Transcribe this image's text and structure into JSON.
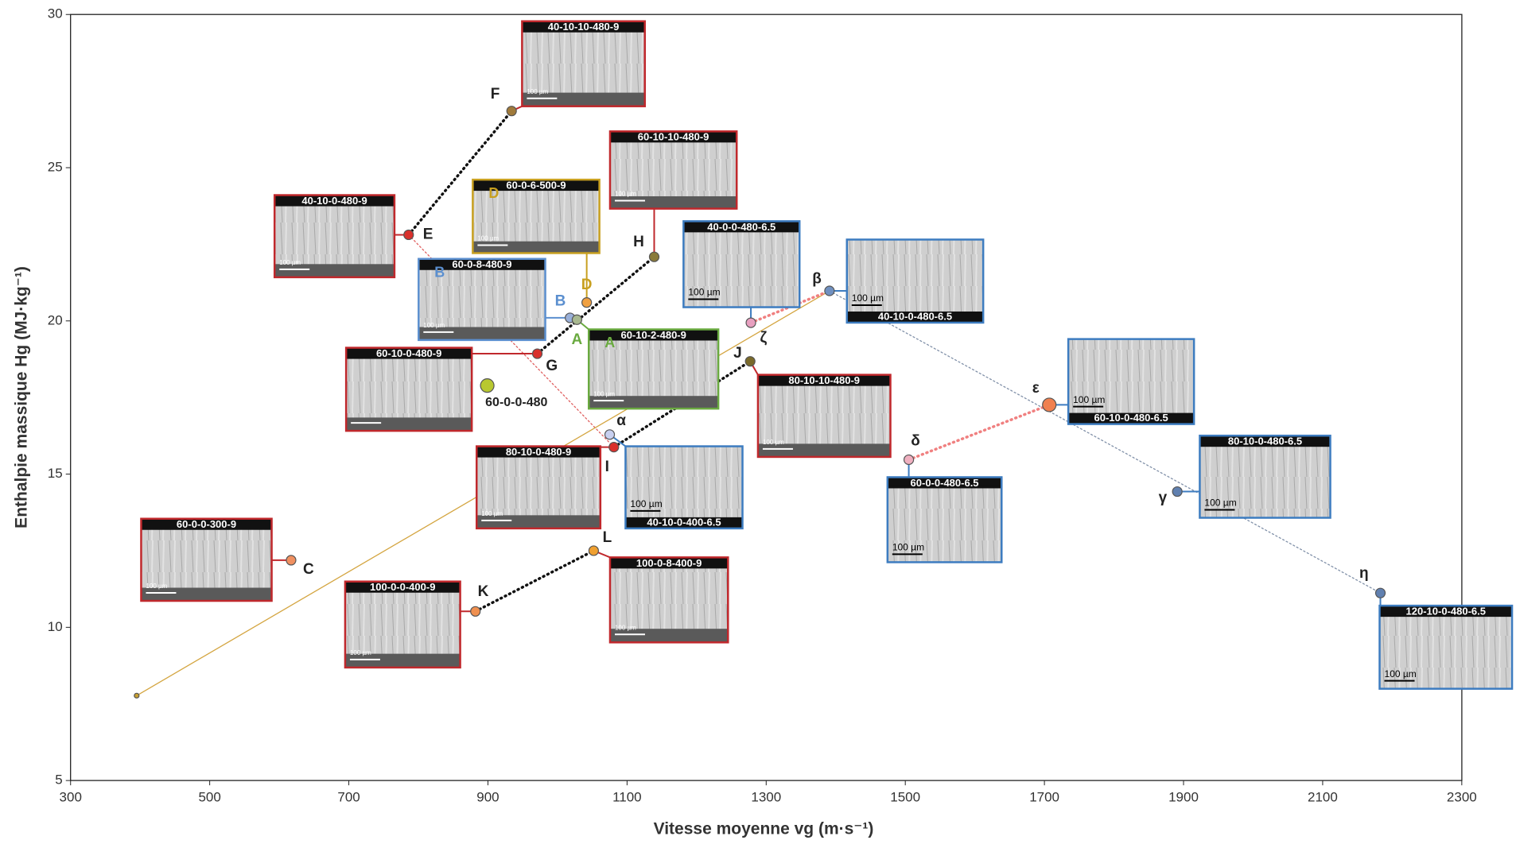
{
  "chart_data": {
    "type": "scatter",
    "x_label": "Vitesse moyenne vg (m·s⁻¹)",
    "y_label": "Enthalpie massique Hg (MJ·kg⁻¹)",
    "xlim": [
      300,
      2300
    ],
    "ylim": [
      5,
      30
    ],
    "xticks": [
      300,
      500,
      700,
      900,
      1100,
      1300,
      1500,
      1700,
      1900,
      2100,
      2300
    ],
    "yticks": [
      5,
      10,
      15,
      20,
      25,
      30
    ],
    "points": [
      {
        "label": "F",
        "x": 934,
        "y": 26.85,
        "color": "#a07a3a"
      },
      {
        "label": "E",
        "x": 786,
        "y": 22.81,
        "color": "#d9302c"
      },
      {
        "label": "H",
        "x": 1139,
        "y": 22.09,
        "color": "#8a7a3a"
      },
      {
        "label": "D",
        "x": 1042,
        "y": 20.6,
        "color": "#f0a040"
      },
      {
        "label": "B",
        "x": 1018,
        "y": 20.1,
        "color": "#9ab0d8"
      },
      {
        "label": "A",
        "x": 1028,
        "y": 20.04,
        "color": "#a8b890"
      },
      {
        "label": "G",
        "x": 971,
        "y": 18.93,
        "color": "#d9302c"
      },
      {
        "label": "60-0-0-480",
        "x": 899,
        "y": 17.89,
        "color": "#b8c830"
      },
      {
        "label": "α",
        "x": 1075,
        "y": 16.29,
        "color": "#c8d0f0"
      },
      {
        "label": "I",
        "x": 1081,
        "y": 15.88,
        "color": "#d9302c"
      },
      {
        "label": "J",
        "x": 1277,
        "y": 18.68,
        "color": "#7a6a2a"
      },
      {
        "label": "ζ",
        "x": 1278,
        "y": 19.94,
        "color": "#e8a0c0"
      },
      {
        "label": "β",
        "x": 1391,
        "y": 20.98,
        "color": "#7090c0"
      },
      {
        "label": "ε",
        "x": 1707,
        "y": 17.26,
        "color": "#f08050"
      },
      {
        "label": "δ",
        "x": 1505,
        "y": 15.47,
        "color": "#f0b0c0"
      },
      {
        "label": "γ",
        "x": 1891,
        "y": 14.43,
        "color": "#6080b0"
      },
      {
        "label": "η",
        "x": 2183,
        "y": 11.12,
        "color": "#6080b0"
      },
      {
        "label": "C",
        "x": 617,
        "y": 12.19,
        "color": "#f09060"
      },
      {
        "label": "L",
        "x": 1052,
        "y": 12.5,
        "color": "#f0a030"
      },
      {
        "label": "K",
        "x": 882,
        "y": 10.52,
        "color": "#f09050"
      },
      {
        "label": null,
        "x": 395,
        "y": 7.77,
        "color": "#c8a030"
      }
    ],
    "lines": [
      {
        "from": 1,
        "to": 0,
        "color": "#111111",
        "dashed": true,
        "heavy": true
      },
      {
        "from": 19,
        "to": 18,
        "color": "#111111",
        "dashed": true,
        "heavy": true
      },
      {
        "from": 6,
        "to": 2,
        "color": "#111111",
        "dashed": true,
        "heavy": true
      },
      {
        "from": 9,
        "to": 10,
        "color": "#111111",
        "dashed": true,
        "heavy": true
      },
      {
        "from": 1,
        "to": 9,
        "color": "#e06060",
        "dashed": true,
        "heavy": false
      },
      {
        "from": 20,
        "to": 12,
        "color": "#d4a540",
        "dashed": false,
        "heavy": false
      },
      {
        "from": 12,
        "to": 16,
        "color": "#8090a8",
        "dashed": true,
        "heavy": false
      },
      {
        "from": 11,
        "to": 12,
        "color": "#f08080",
        "dashed": true,
        "heavy": true
      },
      {
        "from": 14,
        "to": 13,
        "color": "#f08080",
        "dashed": true,
        "heavy": true
      }
    ],
    "insets": [
      {
        "title": "40-10-10-480-9",
        "color": "#c0282c",
        "scale_label": "100 µm"
      },
      {
        "title": "60-10-10-480-9",
        "color": "#c0282c",
        "scale_label": "100 µm"
      },
      {
        "title": "60-0-6-500-9",
        "color": "#c8a020",
        "scale_label": "100 µm",
        "letter": "D"
      },
      {
        "title": "40-10-0-480-9",
        "color": "#c0282c",
        "scale_label": "100 µm"
      },
      {
        "title": "60-0-8-480-9",
        "color": "#5b8fcf",
        "scale_label": "100 µm",
        "letter": "B"
      },
      {
        "title": "40-0-0-480-6.5",
        "color": "#3d7cc0",
        "scale_label": "100 µm"
      },
      {
        "title": "40-10-0-480-6.5",
        "color": "#3d7cc0",
        "scale_label": "100 µm"
      },
      {
        "title": "60-10-0-480-9",
        "color": "#c0282c"
      },
      {
        "title": "60-10-2-480-9",
        "color": "#6aaa40",
        "scale_label": "100 µm",
        "letter": "A"
      },
      {
        "title": "80-10-10-480-9",
        "color": "#c0282c",
        "scale_label": "100 µm"
      },
      {
        "title": "80-10-0-480-9",
        "color": "#c0282c",
        "scale_label": "100 µm"
      },
      {
        "title": "40-10-0-400-6.5",
        "color": "#3d7cc0",
        "scale_label": "100 µm"
      },
      {
        "title": "60-10-0-480-6.5",
        "color": "#3d7cc0",
        "scale_label": "100 µm"
      },
      {
        "title": "60-0-0-480-6.5",
        "color": "#3d7cc0",
        "scale_label": "100 µm"
      },
      {
        "title": "80-10-0-480-6.5",
        "color": "#3d7cc0",
        "scale_label": "100 µm"
      },
      {
        "title": "60-0-0-300-9",
        "color": "#c0282c",
        "scale_label": "100 µm"
      },
      {
        "title": "100-0-0-400-9",
        "color": "#c0282c",
        "scale_label": "100 µm"
      },
      {
        "title": "100-0-8-400-9",
        "color": "#c0282c",
        "scale_label": "100 µm"
      },
      {
        "title": "120-10-0-480-6.5",
        "color": "#3d7cc0",
        "scale_label": "100 µm"
      }
    ]
  }
}
